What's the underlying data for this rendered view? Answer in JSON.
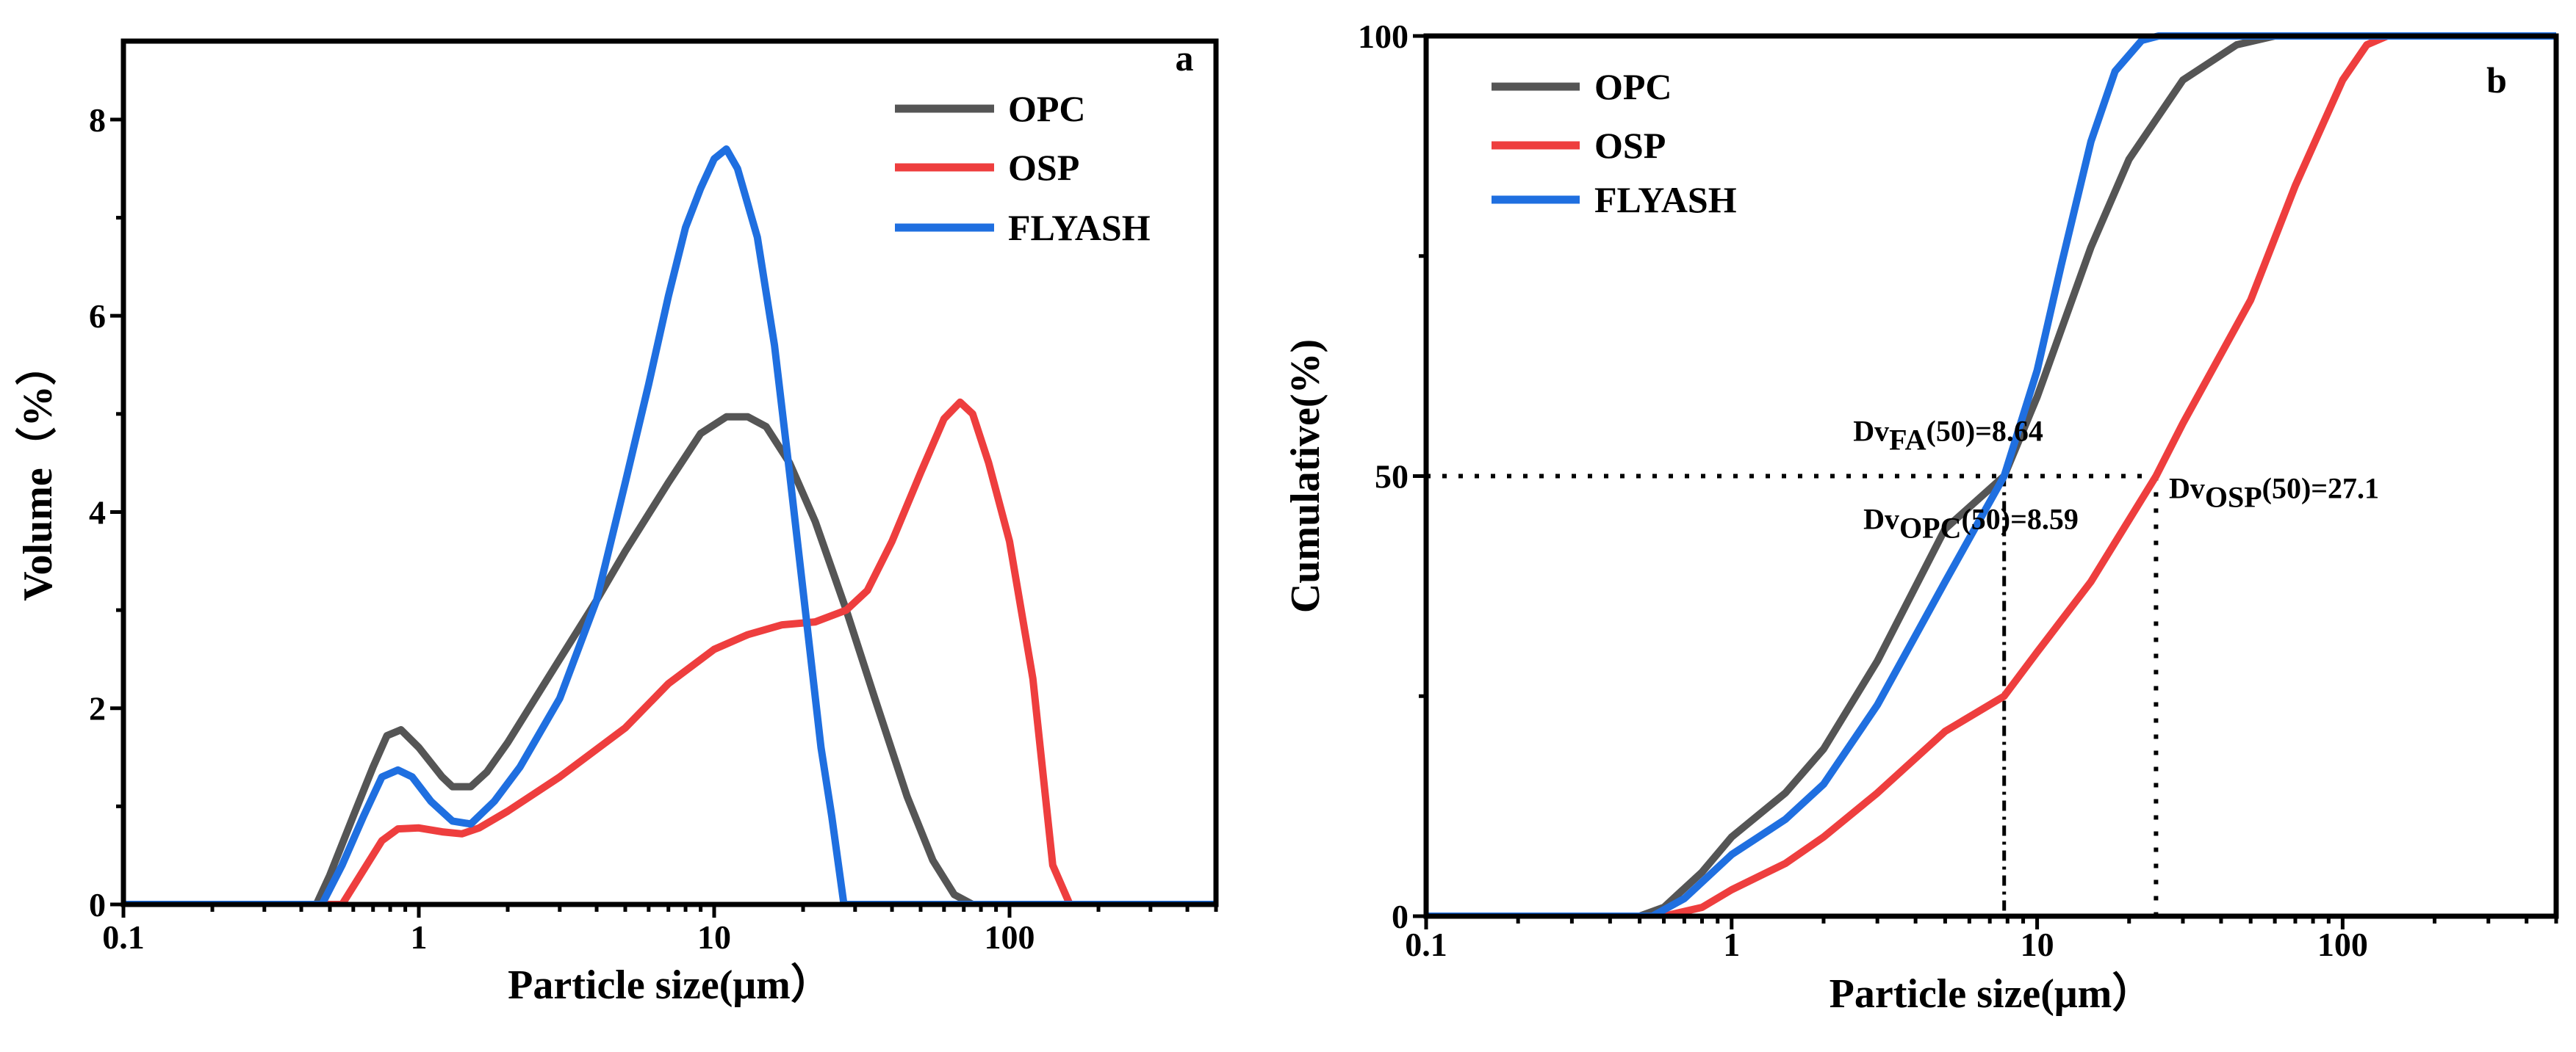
{
  "chart_data": [
    {
      "type": "line",
      "panel_label": "a",
      "xlabel": "Particle size(μm）",
      "ylabel": "Volume（%）",
      "xscale": "log",
      "xlim": [
        0.1,
        500
      ],
      "ylim": [
        0,
        8.8
      ],
      "xticks": [
        0.1,
        1,
        10,
        100
      ],
      "xtick_labels": [
        "0.1",
        "1",
        "10",
        "100"
      ],
      "yticks": [
        0,
        2,
        4,
        6,
        8
      ],
      "ytick_labels": [
        "0",
        "2",
        "4",
        "6",
        "8"
      ],
      "legend_position": "top-right",
      "series": [
        {
          "name": "OPC",
          "color": "#555555",
          "x": [
            0.1,
            0.45,
            0.5,
            0.6,
            0.7,
            0.78,
            0.87,
            1.0,
            1.2,
            1.3,
            1.5,
            1.7,
            2,
            3,
            4,
            5,
            7,
            9,
            11,
            13,
            15,
            18,
            22,
            28,
            35,
            45,
            55,
            65,
            75,
            500
          ],
          "y": [
            0,
            0,
            0.3,
            0.9,
            1.4,
            1.72,
            1.78,
            1.6,
            1.3,
            1.2,
            1.2,
            1.35,
            1.65,
            2.5,
            3.1,
            3.6,
            4.3,
            4.8,
            4.97,
            4.97,
            4.87,
            4.5,
            3.9,
            3.0,
            2.1,
            1.1,
            0.45,
            0.1,
            0,
            0
          ]
        },
        {
          "name": "OSP",
          "color": "#ee3e3e",
          "x": [
            0.1,
            0.55,
            0.65,
            0.75,
            0.85,
            1,
            1.2,
            1.4,
            1.6,
            2,
            3,
            5,
            7,
            10,
            13,
            17,
            22,
            28,
            33,
            40,
            50,
            60,
            68,
            75,
            85,
            100,
            120,
            140,
            160,
            500
          ],
          "y": [
            0,
            0,
            0.35,
            0.65,
            0.77,
            0.78,
            0.74,
            0.72,
            0.78,
            0.95,
            1.3,
            1.8,
            2.25,
            2.6,
            2.75,
            2.85,
            2.88,
            3.0,
            3.2,
            3.7,
            4.4,
            4.95,
            5.12,
            5.0,
            4.5,
            3.7,
            2.3,
            0.4,
            0,
            0
          ]
        },
        {
          "name": "FLYASH",
          "color": "#1f6fe0",
          "x": [
            0.1,
            0.47,
            0.55,
            0.65,
            0.75,
            0.85,
            0.95,
            1.1,
            1.3,
            1.5,
            1.8,
            2.2,
            3,
            4,
            5,
            6,
            7,
            8,
            9,
            10,
            11,
            12,
            14,
            16,
            18,
            20,
            23,
            25,
            27.5,
            500
          ],
          "y": [
            0,
            0,
            0.4,
            0.9,
            1.3,
            1.37,
            1.3,
            1.05,
            0.85,
            0.82,
            1.05,
            1.4,
            2.1,
            3.1,
            4.3,
            5.3,
            6.2,
            6.9,
            7.3,
            7.6,
            7.7,
            7.5,
            6.8,
            5.7,
            4.4,
            3.2,
            1.6,
            0.9,
            0,
            0
          ]
        }
      ]
    },
    {
      "type": "line",
      "panel_label": "b",
      "xlabel": "Particle size(μm）",
      "ylabel": "Cumulative(%)",
      "xscale": "log",
      "xlim": [
        0.1,
        500
      ],
      "ylim": [
        0,
        100
      ],
      "xticks": [
        0.1,
        1,
        10,
        100
      ],
      "xtick_labels": [
        "0.1",
        "1",
        "10",
        "100"
      ],
      "yticks": [
        0,
        50,
        100
      ],
      "ytick_labels": [
        "0",
        "50",
        "100"
      ],
      "legend_position": "top-left",
      "series": [
        {
          "name": "OPC",
          "color": "#555555",
          "x": [
            0.1,
            0.5,
            0.6,
            0.8,
            1,
            1.5,
            2,
            3,
            5,
            7.8,
            10,
            15,
            20,
            30,
            45,
            60,
            500
          ],
          "y": [
            0,
            0,
            1,
            5,
            9,
            14,
            19,
            29,
            44,
            50,
            59,
            76,
            86,
            95,
            99,
            100,
            100
          ]
        },
        {
          "name": "OSP",
          "color": "#ee3e3e",
          "x": [
            0.1,
            0.6,
            0.8,
            1,
            1.5,
            2,
            3,
            5,
            7.8,
            10,
            15,
            24.5,
            30,
            50,
            70,
            100,
            120,
            140,
            500
          ],
          "y": [
            0,
            0,
            1,
            3,
            6,
            9,
            14,
            21,
            25,
            30,
            38,
            50,
            56,
            70,
            83,
            95,
            99,
            100,
            100
          ]
        },
        {
          "name": "FLYASH",
          "color": "#1f6fe0",
          "x": [
            0.1,
            0.55,
            0.7,
            1,
            1.5,
            2,
            3,
            5,
            7.8,
            10,
            12,
            15,
            18,
            22,
            25,
            500
          ],
          "y": [
            0,
            0,
            2,
            7,
            11,
            15,
            24,
            38,
            50,
            62,
            74,
            88,
            96,
            99.5,
            100,
            100
          ]
        }
      ],
      "reference_lines": {
        "y50_to_x": 24.5,
        "opc_fa_x": 7.8,
        "osp_x": 24.5,
        "y": 50
      },
      "annotations": [
        {
          "prefix": "Dv",
          "sub": "FA",
          "suffix": "(50)=8.64",
          "x": 2.5,
          "y": 54
        },
        {
          "prefix": "Dv",
          "sub": "OPC",
          "suffix": "(50)=8.59",
          "x": 2.7,
          "y": 44
        },
        {
          "prefix": "Dv",
          "sub": "OSP",
          "suffix": "(50)=27.1",
          "x": 27,
          "y": 47.5
        }
      ]
    }
  ]
}
